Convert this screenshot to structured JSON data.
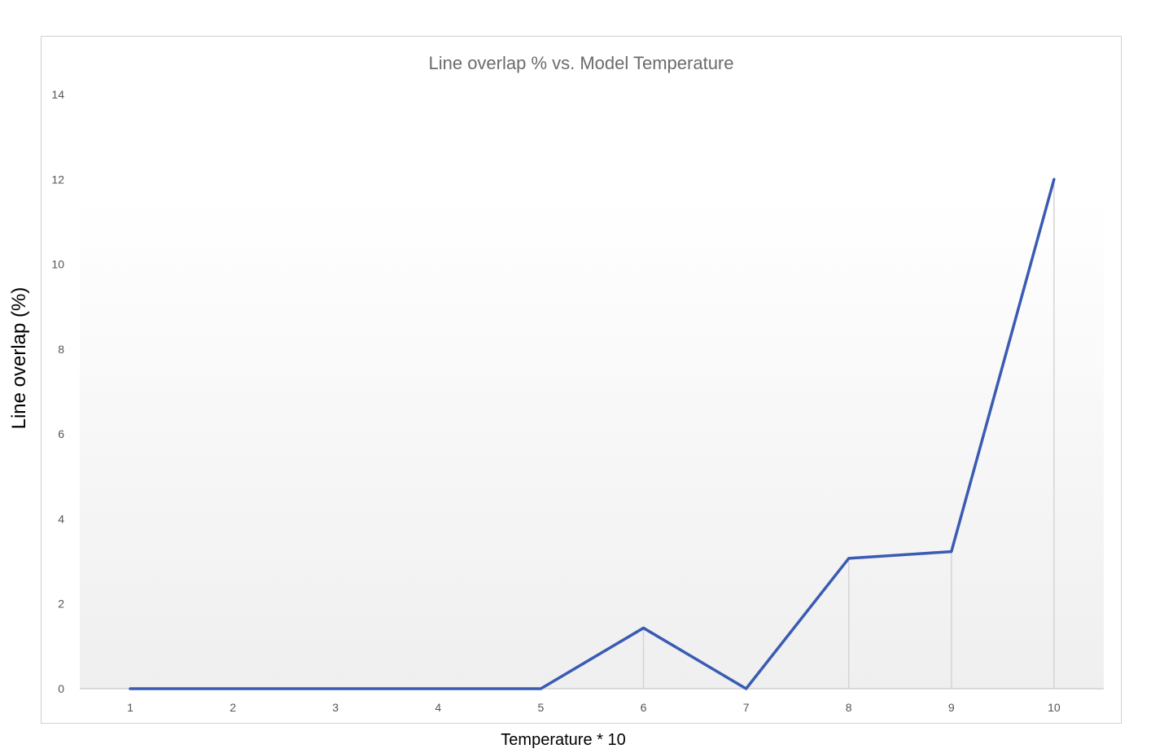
{
  "chart_data": {
    "type": "line",
    "title": "Line overlap % vs. Model Temperature",
    "xlabel": "Temperature * 10",
    "ylabel": "Line overlap (%)",
    "categories": [
      "1",
      "2",
      "3",
      "4",
      "5",
      "6",
      "7",
      "8",
      "9",
      "10"
    ],
    "series": [
      {
        "values": [
          0,
          0,
          0,
          0,
          0,
          1.43,
          0,
          3.07,
          3.23,
          12.0
        ]
      }
    ],
    "ylim": [
      0,
      14
    ],
    "yticks": [
      0,
      2,
      4,
      6,
      8,
      10,
      12,
      14
    ],
    "drop_lines": true,
    "grid": false,
    "legend": "none",
    "colors": {
      "line": "#3a5bb3",
      "drop_line": "#d4d4d4",
      "plot_bg_top": "#ffffff",
      "plot_bg_bottom": "#efeff0",
      "title": "#6b6b6b",
      "tick": "#555555"
    }
  }
}
